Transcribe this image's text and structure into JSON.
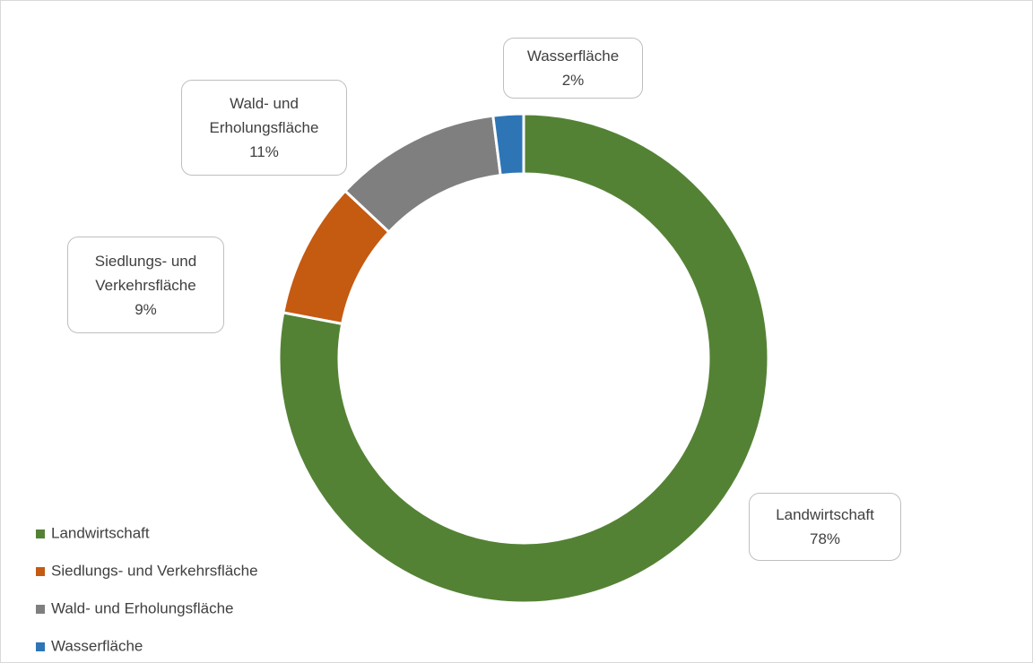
{
  "chart_data": {
    "type": "donut",
    "categories": [
      "Landwirtschaft",
      "Siedlungs- und Verkehrsfläche",
      "Wald- und Erholungsfläche",
      "Wasserfläche"
    ],
    "values": [
      78,
      9,
      11,
      2
    ],
    "value_labels": [
      "78%",
      "9%",
      "11%",
      "2%"
    ],
    "colors": [
      "#548235",
      "#c55a11",
      "#7f7f7f",
      "#2e75b6"
    ],
    "legend": "bottom-left"
  }
}
